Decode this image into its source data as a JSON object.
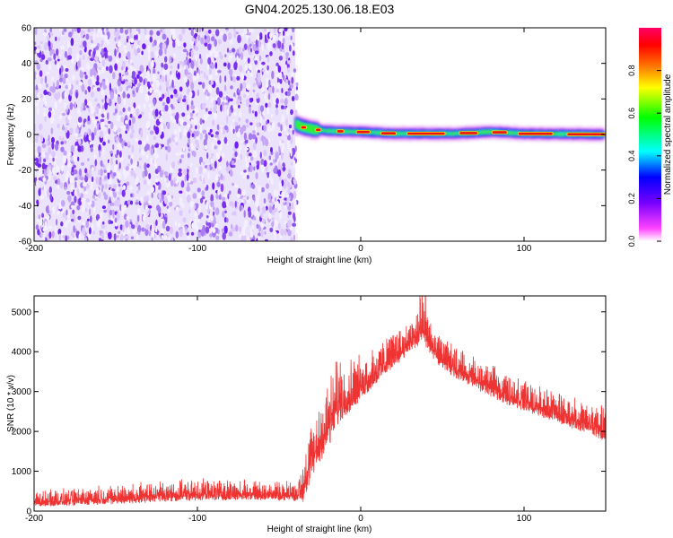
{
  "title": "GN04.2025.130.06.18.E03",
  "chart_data": [
    {
      "type": "heatmap",
      "xlabel": "Height of straight line (km)",
      "ylabel": "Frequency (Hz)",
      "xlim": [
        -200,
        150
      ],
      "ylim": [
        -60,
        60
      ],
      "x_ticks": [
        -200,
        -100,
        0,
        100
      ],
      "y_ticks": [
        -60,
        -40,
        -20,
        0,
        20,
        40,
        60
      ],
      "noise_region_x": [
        -200,
        -40
      ],
      "signal_band": [
        {
          "x": -40,
          "freq": 6
        },
        {
          "x": -35,
          "freq": 4
        },
        {
          "x": -30,
          "freq": 3
        },
        {
          "x": -20,
          "freq": 2
        },
        {
          "x": 0,
          "freq": 1.5
        },
        {
          "x": 20,
          "freq": 0.5
        },
        {
          "x": 60,
          "freq": 0.5
        },
        {
          "x": 80,
          "freq": 1.5
        },
        {
          "x": 100,
          "freq": 0.5
        },
        {
          "x": 150,
          "freq": 0
        }
      ],
      "colorbar": {
        "label": "Normalized spectral amplitude",
        "range": [
          0,
          1
        ],
        "ticks": [
          "0.0",
          "0.2",
          "0.4",
          "0.6",
          "0.8"
        ],
        "colors": [
          "#ffffff",
          "#ff44ff",
          "#7700ff",
          "#0000ff",
          "#00ffff",
          "#00ff00",
          "#ffff00",
          "#ff7700",
          "#ff0000",
          "#ff0066"
        ]
      }
    },
    {
      "type": "line",
      "xlabel": "Height of straight line (km)",
      "ylabel": "SNR (10 * v/v)",
      "xlim": [
        -200,
        150
      ],
      "ylim": [
        0,
        5400
      ],
      "x_ticks": [
        -200,
        -100,
        0,
        100
      ],
      "y_ticks": [
        0,
        1000,
        2000,
        3000,
        4000,
        5000
      ],
      "color": "#ee3333",
      "envelope": {
        "x": [
          -200,
          -150,
          -100,
          -60,
          -38,
          -35,
          -30,
          -25,
          -20,
          -15,
          -10,
          0,
          10,
          20,
          30,
          38,
          45,
          55,
          70,
          90,
          110,
          130,
          150
        ],
        "base": [
          220,
          320,
          420,
          420,
          400,
          600,
          1300,
          1700,
          2100,
          2600,
          2800,
          3100,
          3500,
          3900,
          4200,
          4550,
          4000,
          3650,
          3300,
          2900,
          2600,
          2300,
          2000
        ],
        "amp": [
          220,
          280,
          300,
          280,
          300,
          700,
          900,
          1000,
          1100,
          1000,
          900,
          700,
          600,
          550,
          500,
          550,
          500,
          450,
          450,
          450,
          450,
          450,
          500
        ]
      }
    }
  ]
}
